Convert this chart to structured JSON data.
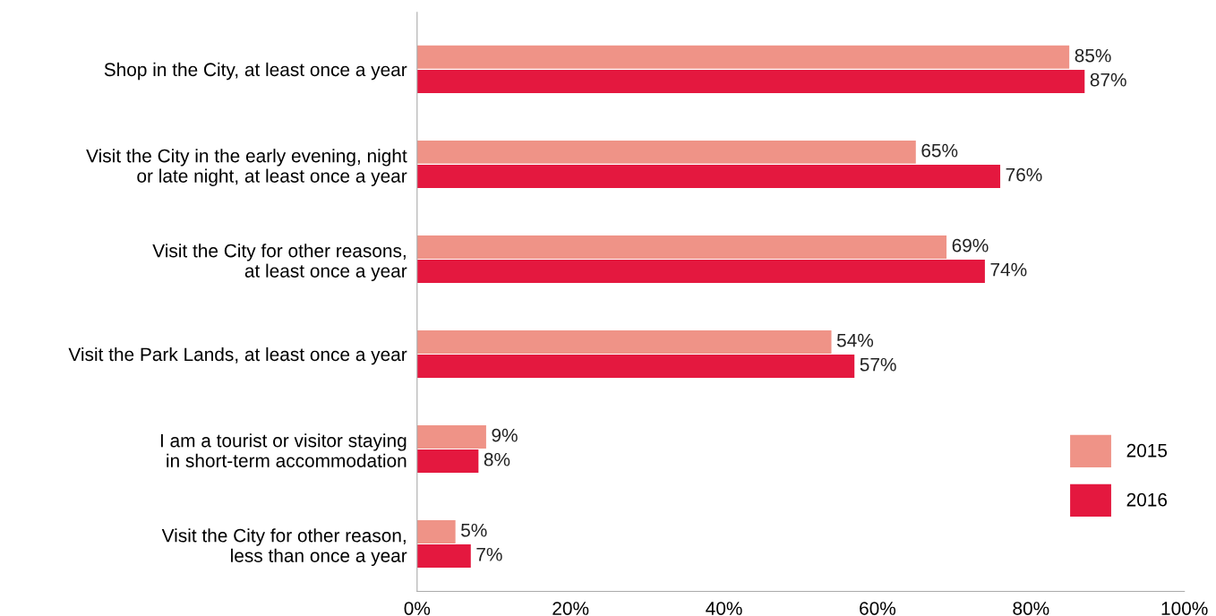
{
  "chart_data": {
    "type": "bar",
    "orientation": "horizontal",
    "categories": [
      "Shop in the City, at least once a year",
      "Visit the City in the early evening, night\nor late night, at least once a year",
      "Visit the City for other reasons,\nat least once a year",
      "Visit the Park Lands, at least once a year",
      "I am a tourist or visitor staying\nin short-term accommodation",
      "Visit the City for other reason,\nless than once a year"
    ],
    "series": [
      {
        "name": "2015",
        "color": "#ef9387",
        "values": [
          85,
          65,
          69,
          54,
          9,
          5
        ],
        "value_labels": [
          "85%",
          "65%",
          "69%",
          "54%",
          "9%",
          "5%"
        ]
      },
      {
        "name": "2016",
        "color": "#e4183f",
        "values": [
          87,
          76,
          74,
          57,
          8,
          7
        ],
        "value_labels": [
          "87%",
          "76%",
          "74%",
          "57%",
          "8%",
          "7%"
        ]
      }
    ],
    "xlim": [
      0,
      100
    ],
    "xticks": [
      {
        "value": 0,
        "label": "0%"
      },
      {
        "value": 20,
        "label": "20%"
      },
      {
        "value": 40,
        "label": "40%"
      },
      {
        "value": 60,
        "label": "60%"
      },
      {
        "value": 80,
        "label": "80%"
      },
      {
        "value": 100,
        "label": "100%"
      }
    ],
    "grid": false,
    "legend": "bottom right"
  }
}
